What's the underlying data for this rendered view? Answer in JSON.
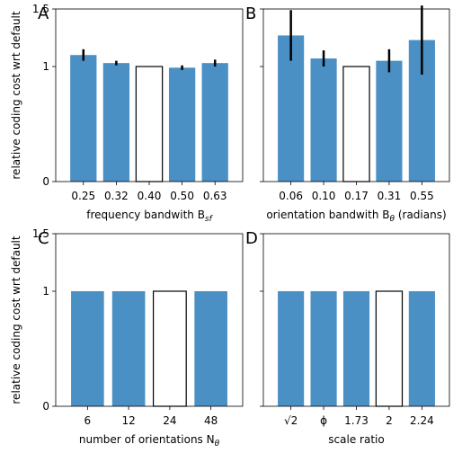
{
  "figure": {
    "shared_ylabel": "relative coding cost wrt default",
    "colors": {
      "bar": "#4a90c4",
      "default_bar_fill": "#ffffff",
      "default_bar_edge": "#000000",
      "error_bar": "#000000"
    }
  },
  "chart_data": [
    {
      "type": "bar",
      "panel_label": "A",
      "categories": [
        "0.25",
        "0.32",
        "0.40",
        "0.50",
        "0.63"
      ],
      "values": [
        1.1,
        1.03,
        1.0,
        0.99,
        1.03
      ],
      "errors": [
        0.05,
        0.02,
        0.0,
        0.02,
        0.03
      ],
      "default_index": 2,
      "xlabel": "frequency bandwith B",
      "xlabel_sub": "sf",
      "ylabel": "relative coding cost wrt default",
      "ylim": [
        0,
        1.5
      ],
      "yticks": [
        "0",
        "1",
        "1.5"
      ],
      "show_ytick_labels": true
    },
    {
      "type": "bar",
      "panel_label": "B",
      "categories": [
        "0.06",
        "0.10",
        "0.17",
        "0.31",
        "0.55"
      ],
      "values": [
        1.27,
        1.07,
        1.0,
        1.05,
        1.23
      ],
      "errors": [
        0.22,
        0.07,
        0.0,
        0.1,
        0.3
      ],
      "default_index": 2,
      "xlabel": "orientation bandwith B",
      "xlabel_sub": "θ",
      "xlabel_suffix": " (radians)",
      "ylim": [
        0,
        1.5
      ],
      "yticks": [
        "0",
        "1",
        "1.5"
      ],
      "show_ytick_labels": false
    },
    {
      "type": "bar",
      "panel_label": "C",
      "categories": [
        "6",
        "12",
        "24",
        "48"
      ],
      "values": [
        1.0,
        1.0,
        1.0,
        1.0
      ],
      "errors": [
        0.0,
        0.0,
        0.0,
        0.0
      ],
      "default_index": 2,
      "xlabel": "number of orientations N",
      "xlabel_sub": "θ",
      "ylabel": "relative coding cost wrt default",
      "ylim": [
        0,
        1.5
      ],
      "yticks": [
        "0",
        "1",
        "1.5"
      ],
      "show_ytick_labels": true
    },
    {
      "type": "bar",
      "panel_label": "D",
      "categories": [
        "√2",
        "ϕ",
        "1.73",
        "2",
        "2.24"
      ],
      "values": [
        1.0,
        1.0,
        1.0,
        1.0,
        1.0
      ],
      "errors": [
        0.0,
        0.0,
        0.0,
        0.0,
        0.0
      ],
      "default_index": 3,
      "xlabel": "scale ratio",
      "ylim": [
        0,
        1.5
      ],
      "yticks": [
        "0",
        "1",
        "1.5"
      ],
      "show_ytick_labels": false
    }
  ]
}
